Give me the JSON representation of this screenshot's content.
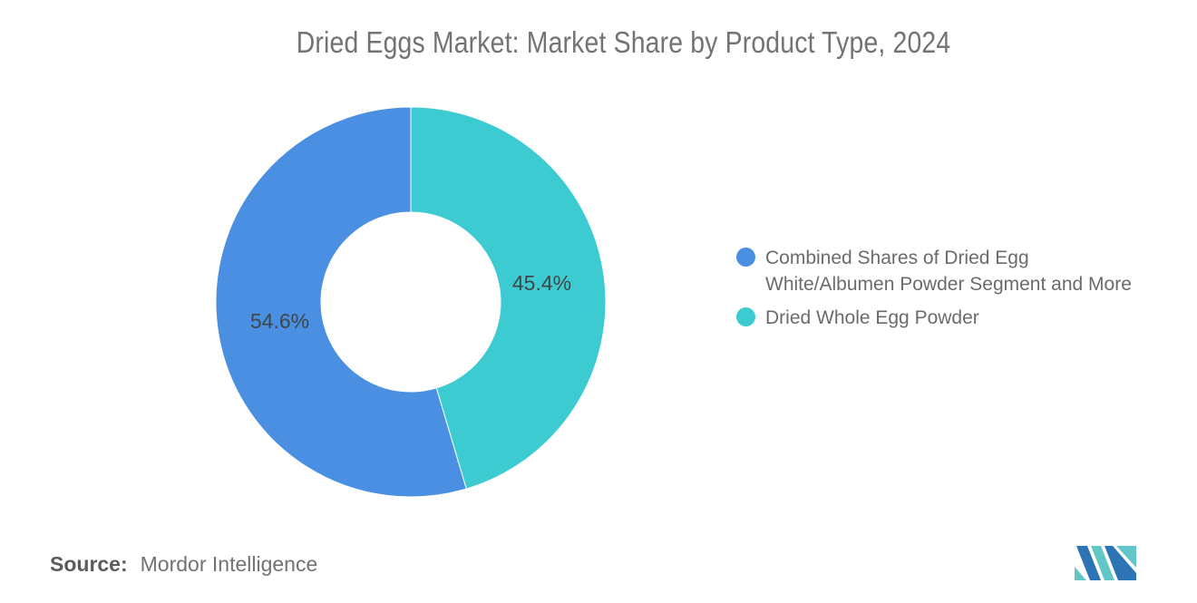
{
  "title": "Dried Eggs Market: Market Share by Product Type, 2024",
  "chart_data": {
    "type": "pie",
    "subtype": "donut",
    "title": "Dried Eggs Market: Market Share by Product Type, 2024",
    "start_angle_deg": 0,
    "direction": "clockwise",
    "inner_radius_ratio": 0.46,
    "legend_position": "right",
    "data_label_color": "#3F474A",
    "slices": [
      {
        "label": "Combined Shares of Dried Egg\nWhite/Albumen Powder Segment and More",
        "value": 54.6,
        "pct_label": "54.6%",
        "color": "#4A8FE2"
      },
      {
        "label": "Dried Whole Egg Powder",
        "value": 45.4,
        "pct_label": "45.4%",
        "color": "#3DCBD2"
      }
    ]
  },
  "source": {
    "prefix": "Source:",
    "text": "Mordor Intelligence"
  },
  "logo": {
    "name": "mordor-intelligence-logo",
    "blue": "#2D74B5",
    "teal": "#62C5C7"
  }
}
